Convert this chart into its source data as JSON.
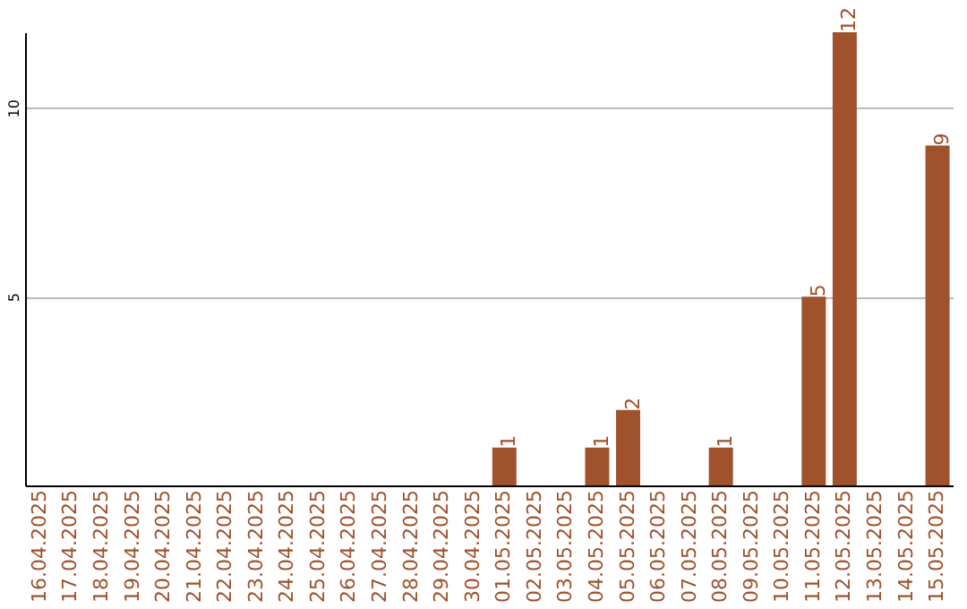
{
  "chart_data": {
    "type": "bar",
    "categories": [
      "16.04.2025",
      "17.04.2025",
      "18.04.2025",
      "19.04.2025",
      "20.04.2025",
      "21.04.2025",
      "22.04.2025",
      "23.04.2025",
      "24.04.2025",
      "25.04.2025",
      "26.04.2025",
      "27.04.2025",
      "28.04.2025",
      "29.04.2025",
      "30.04.2025",
      "01.05.2025",
      "02.05.2025",
      "03.05.2025",
      "04.05.2025",
      "05.05.2025",
      "06.05.2025",
      "07.05.2025",
      "08.05.2025",
      "09.05.2025",
      "10.05.2025",
      "11.05.2025",
      "12.05.2025",
      "13.05.2025",
      "14.05.2025",
      "15.05.2025"
    ],
    "values": [
      0,
      0,
      0,
      0,
      0,
      0,
      0,
      0,
      0,
      0,
      0,
      0,
      0,
      0,
      0,
      1,
      0,
      0,
      1,
      2,
      0,
      0,
      1,
      0,
      0,
      5,
      12,
      0,
      0,
      9
    ],
    "value_labels": [
      null,
      null,
      null,
      null,
      null,
      null,
      null,
      null,
      null,
      null,
      null,
      null,
      null,
      null,
      null,
      "1",
      null,
      null,
      "1",
      "2",
      null,
      null,
      "1",
      null,
      null,
      "5",
      "12",
      null,
      null,
      "9"
    ],
    "color": "#a0522d",
    "ylim": [
      0,
      12
    ],
    "yticks": [
      5,
      10
    ],
    "grid": "y"
  }
}
